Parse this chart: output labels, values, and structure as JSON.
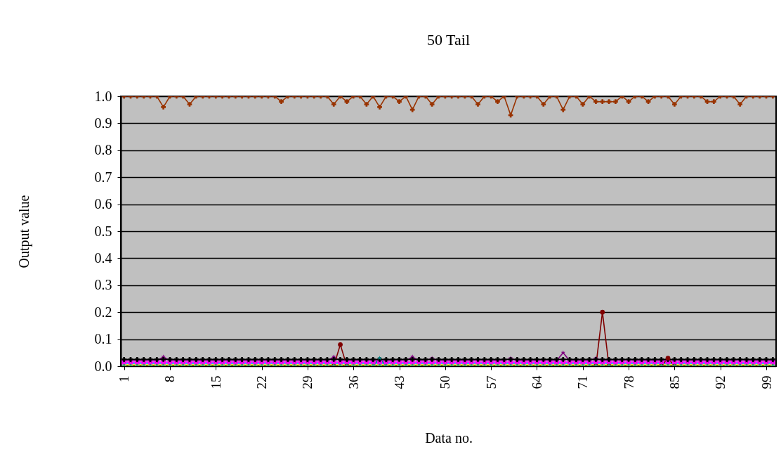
{
  "chart_data": {
    "type": "line",
    "title": "50 Tail",
    "xlabel": "Data no.",
    "ylabel": "Output value",
    "x": [
      1,
      2,
      3,
      4,
      5,
      6,
      7,
      8,
      9,
      10,
      11,
      12,
      13,
      14,
      15,
      16,
      17,
      18,
      19,
      20,
      21,
      22,
      23,
      24,
      25,
      26,
      27,
      28,
      29,
      30,
      31,
      32,
      33,
      34,
      35,
      36,
      37,
      38,
      39,
      40,
      41,
      42,
      43,
      44,
      45,
      46,
      47,
      48,
      49,
      50,
      51,
      52,
      53,
      54,
      55,
      56,
      57,
      58,
      59,
      60,
      61,
      62,
      63,
      64,
      65,
      66,
      67,
      68,
      69,
      70,
      71,
      72,
      73,
      74,
      75,
      76,
      77,
      78,
      79,
      80,
      81,
      82,
      83,
      84,
      85,
      86,
      87,
      88,
      89,
      90,
      91,
      92,
      93,
      94,
      95,
      96,
      97,
      98,
      99,
      100
    ],
    "xlim": [
      0.5,
      100.5
    ],
    "xticks": [
      1,
      8,
      15,
      22,
      29,
      36,
      43,
      50,
      57,
      64,
      71,
      78,
      85,
      92,
      99
    ],
    "ylim": [
      0,
      1
    ],
    "yticks": [
      {
        "value": 0,
        "label": "0.0"
      },
      {
        "value": 0.1,
        "label": "0.1"
      },
      {
        "value": 0.2,
        "label": "0.2"
      },
      {
        "value": 0.3,
        "label": "0.3"
      },
      {
        "value": 0.4,
        "label": "0.4"
      },
      {
        "value": 0.5,
        "label": "0.5"
      },
      {
        "value": 0.6,
        "label": "0.6"
      },
      {
        "value": 0.7,
        "label": "0.7"
      },
      {
        "value": 0.8,
        "label": "0.8"
      },
      {
        "value": 0.9,
        "label": "0.9"
      },
      {
        "value": 1,
        "label": "1.0"
      }
    ],
    "grid": "y",
    "line_style": "solid",
    "series": [
      {
        "color": "#ffff00",
        "marker": "none",
        "values": [
          0.005,
          0.005,
          0.005,
          0.005,
          0.005,
          0.005,
          0.005,
          0.005,
          0.005,
          0.005,
          0.005,
          0.005,
          0.005,
          0.005,
          0.005,
          0.005,
          0.005,
          0.005,
          0.005,
          0.005,
          0.005,
          0.005,
          0.005,
          0.005,
          0.005,
          0.005,
          0.005,
          0.005,
          0.005,
          0.005,
          0.005,
          0.005,
          0.005,
          0.005,
          0.005,
          0.005,
          0.005,
          0.005,
          0.005,
          0.005,
          0.005,
          0.005,
          0.005,
          0.005,
          0.005,
          0.005,
          0.005,
          0.005,
          0.005,
          0.005,
          0.005,
          0.005,
          0.005,
          0.005,
          0.005,
          0.005,
          0.005,
          0.005,
          0.005,
          0.005,
          0.005,
          0.005,
          0.005,
          0.005,
          0.005,
          0.005,
          0.005,
          0.005,
          0.005,
          0.005,
          0.005,
          0.005,
          0.005,
          0.005,
          0.005,
          0.005,
          0.005,
          0.005,
          0.005,
          0.005,
          0.005,
          0.005,
          0.005,
          0.005,
          0.005,
          0.005,
          0.005,
          0.005,
          0.005,
          0.005,
          0.005,
          0.005,
          0.005,
          0.005,
          0.005,
          0.005,
          0.005,
          0.005,
          0.005,
          0.005
        ]
      },
      {
        "color": "#00ccff",
        "marker": "none",
        "values": [
          0.01,
          0.01,
          0.01,
          0.01,
          0.01,
          0.01,
          0.01,
          0.01,
          0.01,
          0.01,
          0.01,
          0.01,
          0.01,
          0.01,
          0.01,
          0.01,
          0.01,
          0.01,
          0.01,
          0.01,
          0.01,
          0.01,
          0.01,
          0.01,
          0.01,
          0.01,
          0.01,
          0.01,
          0.01,
          0.01,
          0.01,
          0.01,
          0.01,
          0.01,
          0.01,
          0.01,
          0.01,
          0.01,
          0.01,
          0.01,
          0.01,
          0.01,
          0.01,
          0.01,
          0.01,
          0.01,
          0.01,
          0.01,
          0.01,
          0.01,
          0.01,
          0.01,
          0.01,
          0.01,
          0.01,
          0.01,
          0.01,
          0.01,
          0.01,
          0.01,
          0.01,
          0.01,
          0.01,
          0.01,
          0.01,
          0.01,
          0.01,
          0.01,
          0.01,
          0.01,
          0.01,
          0.01,
          0.01,
          0.01,
          0.01,
          0.01,
          0.01,
          0.01,
          0.01,
          0.01,
          0.01,
          0.01,
          0.01,
          0.01,
          0.01,
          0.01,
          0.01,
          0.01,
          0.01,
          0.01,
          0.01,
          0.01,
          0.01,
          0.01,
          0.01,
          0.01,
          0.01,
          0.01,
          0.01,
          0.01
        ]
      },
      {
        "color": "#ff00ff",
        "marker": "square",
        "values": [
          0.015,
          0.015,
          0.015,
          0.015,
          0.015,
          0.015,
          0.015,
          0.015,
          0.015,
          0.015,
          0.015,
          0.015,
          0.015,
          0.015,
          0.015,
          0.015,
          0.015,
          0.015,
          0.015,
          0.015,
          0.015,
          0.015,
          0.015,
          0.015,
          0.015,
          0.015,
          0.015,
          0.015,
          0.015,
          0.015,
          0.015,
          0.015,
          0.015,
          0.015,
          0.015,
          0.015,
          0.015,
          0.015,
          0.015,
          0.015,
          0.015,
          0.015,
          0.015,
          0.015,
          0.015,
          0.015,
          0.015,
          0.015,
          0.015,
          0.015,
          0.015,
          0.015,
          0.015,
          0.015,
          0.015,
          0.015,
          0.015,
          0.015,
          0.015,
          0.015,
          0.015,
          0.015,
          0.015,
          0.015,
          0.015,
          0.015,
          0.015,
          0.015,
          0.015,
          0.015,
          0.015,
          0.015,
          0.015,
          0.015,
          0.015,
          0.015,
          0.015,
          0.015,
          0.015,
          0.015,
          0.015,
          0.015,
          0.015,
          0.015,
          0.015,
          0.015,
          0.015,
          0.015,
          0.015,
          0.015,
          0.015,
          0.015,
          0.015,
          0.015,
          0.015,
          0.015,
          0.015,
          0.015,
          0.015,
          0.015
        ]
      },
      {
        "color": "#800080",
        "marker": "star",
        "values": [
          0.02,
          0.02,
          0.02,
          0.02,
          0.02,
          0.02,
          0.035,
          0.02,
          0.02,
          0.02,
          0.02,
          0.02,
          0.02,
          0.02,
          0.02,
          0.02,
          0.02,
          0.02,
          0.02,
          0.02,
          0.02,
          0.02,
          0.02,
          0.02,
          0.02,
          0.02,
          0.02,
          0.02,
          0.02,
          0.02,
          0.02,
          0.02,
          0.035,
          0.02,
          0.02,
          0.02,
          0.02,
          0.025,
          0.02,
          0.02,
          0.02,
          0.02,
          0.025,
          0.02,
          0.035,
          0.02,
          0.02,
          0.03,
          0.02,
          0.02,
          0.02,
          0.02,
          0.02,
          0.02,
          0.025,
          0.02,
          0.02,
          0.02,
          0.02,
          0.03,
          0.02,
          0.02,
          0.02,
          0.02,
          0.025,
          0.02,
          0.02,
          0.05,
          0.02,
          0.02,
          0.02,
          0.02,
          0.03,
          0.02,
          0.02,
          0.025,
          0.02,
          0.025,
          0.02,
          0.02,
          0.02,
          0.02,
          0.02,
          0.02,
          0.025,
          0.02,
          0.02,
          0.02,
          0.02,
          0.02,
          0.02,
          0.02,
          0.02,
          0.02,
          0.025,
          0.02,
          0.02,
          0.02,
          0.02,
          0.02
        ]
      },
      {
        "color": "#000000",
        "marker": "cross",
        "values": [
          0.025,
          0.025,
          0.025,
          0.025,
          0.025,
          0.025,
          0.025,
          0.025,
          0.025,
          0.025,
          0.025,
          0.025,
          0.025,
          0.025,
          0.025,
          0.025,
          0.025,
          0.025,
          0.025,
          0.025,
          0.025,
          0.025,
          0.025,
          0.025,
          0.025,
          0.025,
          0.025,
          0.025,
          0.025,
          0.025,
          0.025,
          0.025,
          0.025,
          0.025,
          0.025,
          0.025,
          0.025,
          0.025,
          0.025,
          0.025,
          0.025,
          0.025,
          0.025,
          0.025,
          0.025,
          0.025,
          0.025,
          0.025,
          0.025,
          0.025,
          0.025,
          0.025,
          0.025,
          0.025,
          0.025,
          0.025,
          0.025,
          0.025,
          0.025,
          0.025,
          0.025,
          0.025,
          0.025,
          0.025,
          0.025,
          0.025,
          0.025,
          0.025,
          0.025,
          0.025,
          0.025,
          0.025,
          0.025,
          0.025,
          0.025,
          0.025,
          0.025,
          0.025,
          0.025,
          0.025,
          0.025,
          0.025,
          0.025,
          0.025,
          0.025,
          0.025,
          0.025,
          0.025,
          0.025,
          0.025,
          0.025,
          0.025,
          0.025,
          0.025,
          0.025,
          0.025,
          0.025,
          0.025,
          0.025,
          0.025
        ]
      },
      {
        "color": "#008080",
        "marker": "star",
        "values": [
          null,
          null,
          null,
          null,
          null,
          null,
          null,
          null,
          null,
          null,
          null,
          null,
          null,
          null,
          null,
          null,
          null,
          null,
          null,
          null,
          null,
          null,
          null,
          null,
          null,
          null,
          null,
          null,
          null,
          null,
          null,
          null,
          null,
          null,
          null,
          null,
          null,
          null,
          0,
          0.03,
          0,
          null,
          null,
          null,
          null,
          null,
          null,
          null,
          null,
          null,
          null,
          null,
          null,
          null,
          null,
          null,
          null,
          null,
          null,
          null,
          null,
          null,
          null,
          null,
          null,
          null,
          null,
          null,
          null,
          null,
          null,
          null,
          null,
          null,
          null,
          null,
          null,
          null,
          null,
          null,
          null,
          null,
          null,
          null,
          null,
          null,
          null,
          null,
          null,
          null,
          null,
          null,
          null,
          null,
          null,
          null,
          null,
          null,
          null,
          null
        ]
      },
      {
        "color": "#800000",
        "marker": "circle",
        "values": [
          null,
          null,
          null,
          null,
          null,
          null,
          null,
          null,
          null,
          null,
          null,
          null,
          null,
          null,
          null,
          null,
          null,
          null,
          null,
          null,
          null,
          null,
          null,
          null,
          null,
          null,
          null,
          null,
          null,
          null,
          null,
          null,
          0,
          0.08,
          0,
          null,
          null,
          null,
          null,
          null,
          null,
          null,
          null,
          null,
          null,
          null,
          null,
          null,
          null,
          null,
          null,
          null,
          null,
          null,
          null,
          null,
          null,
          null,
          null,
          null,
          null,
          null,
          null,
          null,
          null,
          null,
          null,
          null,
          null,
          null,
          null,
          null,
          0,
          0.2,
          0,
          null,
          null,
          null,
          null,
          null,
          null,
          null,
          0,
          0.03,
          0,
          null,
          null,
          null,
          null,
          null,
          null,
          null,
          null,
          null,
          null,
          null,
          null,
          null,
          null,
          null
        ]
      },
      {
        "color": "#993300",
        "marker": "cross",
        "values": [
          1,
          1,
          1,
          1,
          1,
          1,
          0.96,
          1,
          1,
          1,
          0.97,
          1,
          1,
          1,
          1,
          1,
          1,
          1,
          1,
          1,
          1,
          1,
          1,
          1,
          0.98,
          1,
          1,
          1,
          1,
          1,
          1,
          1,
          0.97,
          1,
          0.98,
          1,
          1,
          0.97,
          1,
          0.96,
          1,
          1,
          0.98,
          1,
          0.95,
          1,
          1,
          0.97,
          1,
          1,
          1,
          1,
          1,
          1,
          0.97,
          1,
          1,
          0.98,
          1,
          0.93,
          1,
          1,
          1,
          1,
          0.97,
          1,
          1,
          0.95,
          1,
          1,
          0.97,
          1,
          0.98,
          0.98,
          0.98,
          0.98,
          1,
          0.98,
          1,
          1,
          0.98,
          1,
          1,
          1,
          0.97,
          1,
          1,
          1,
          1,
          0.98,
          0.98,
          1,
          1,
          1,
          0.97,
          1,
          1,
          1,
          1,
          1
        ]
      },
      {
        "type": "scatter",
        "color": "#339966",
        "marker": "cross",
        "values": [
          0,
          0,
          0,
          0,
          0,
          0,
          0,
          0,
          0,
          0,
          0,
          0,
          0,
          0,
          0,
          0,
          0,
          0,
          0,
          0,
          0,
          0,
          0,
          0,
          0,
          0,
          0,
          0,
          0,
          0,
          0,
          0,
          0,
          0,
          0,
          0,
          0,
          0,
          0,
          0,
          0,
          0,
          0,
          0,
          0,
          0,
          0,
          0,
          0,
          0,
          0,
          0,
          0,
          0,
          0,
          0,
          0,
          0,
          0,
          0,
          0,
          0,
          0,
          0,
          0,
          0,
          0,
          0,
          0,
          0,
          0,
          0,
          0,
          0,
          0,
          0,
          0,
          0,
          0,
          0,
          0,
          0,
          0,
          0,
          0,
          0,
          0,
          0,
          0,
          0,
          0,
          0,
          0,
          0,
          0,
          0,
          0,
          0,
          0,
          0
        ]
      }
    ]
  }
}
